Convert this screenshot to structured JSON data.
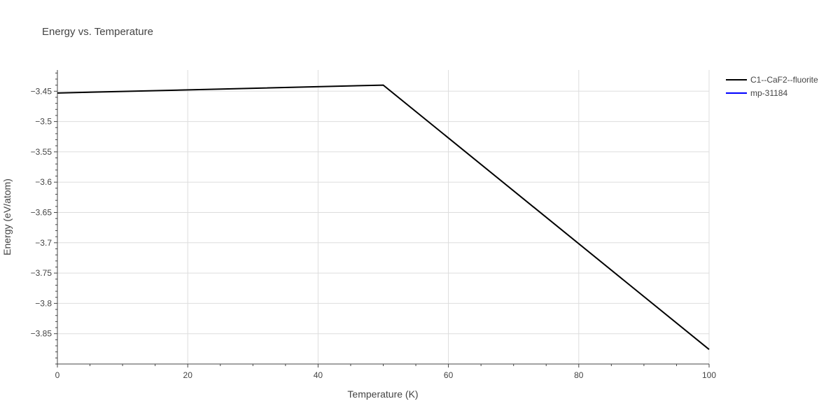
{
  "chart_data": {
    "type": "line",
    "title": "Energy vs. Temperature",
    "xlabel": "Temperature (K)",
    "ylabel": "Energy (eV/atom)",
    "xlim": [
      0,
      100
    ],
    "ylim": [
      -3.9,
      -3.415
    ],
    "x_ticks": [
      0,
      20,
      40,
      60,
      80,
      100
    ],
    "x_tick_labels": [
      "0",
      "20",
      "40",
      "60",
      "80",
      "100"
    ],
    "y_ticks": [
      -3.45,
      -3.5,
      -3.55,
      -3.6,
      -3.65,
      -3.7,
      -3.75,
      -3.8,
      -3.85
    ],
    "y_tick_labels": [
      "−3.45",
      "−3.5",
      "−3.55",
      "−3.6",
      "−3.65",
      "−3.7",
      "−3.75",
      "−3.8",
      "−3.85"
    ],
    "grid": true,
    "legend_position": "top-right outside",
    "series": [
      {
        "name": "C1--CaF2--fluorite",
        "color": "#000000",
        "x": [
          0,
          50,
          100
        ],
        "y": [
          -3.453,
          -3.44,
          -3.876
        ]
      },
      {
        "name": "mp-31184",
        "color": "#0000ff",
        "x": [],
        "y": []
      }
    ]
  }
}
